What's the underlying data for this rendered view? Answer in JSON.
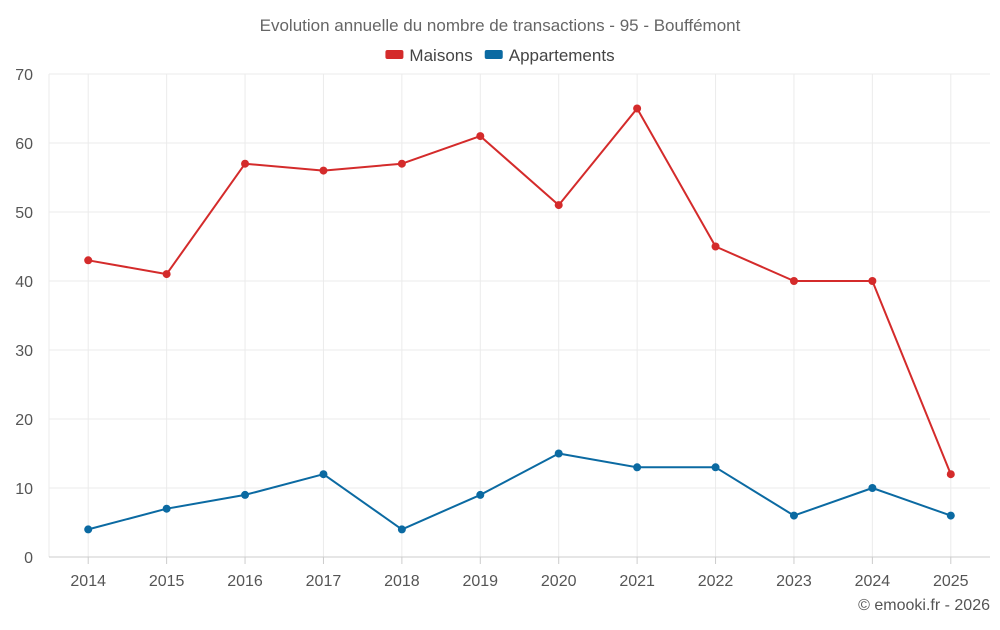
{
  "chart_data": {
    "type": "line",
    "title": "Evolution annuelle du nombre de transactions - 95 - Bouffémont",
    "xlabel": "",
    "ylabel": "",
    "categories": [
      "2014",
      "2015",
      "2016",
      "2017",
      "2018",
      "2019",
      "2020",
      "2021",
      "2022",
      "2023",
      "2024",
      "2025"
    ],
    "ylim": [
      0,
      70
    ],
    "yticks": [
      0,
      10,
      20,
      30,
      40,
      50,
      60,
      70
    ],
    "grid": true,
    "legend_position": "top-center",
    "series": [
      {
        "name": "Maisons",
        "color": "#d42b2b",
        "values": [
          43,
          41,
          57,
          56,
          57,
          61,
          51,
          65,
          45,
          40,
          40,
          12
        ]
      },
      {
        "name": "Appartements",
        "color": "#0b6aa2",
        "values": [
          4,
          7,
          9,
          12,
          4,
          9,
          15,
          13,
          13,
          6,
          10,
          6
        ]
      }
    ],
    "credit": "© emooki.fr - 2026"
  }
}
